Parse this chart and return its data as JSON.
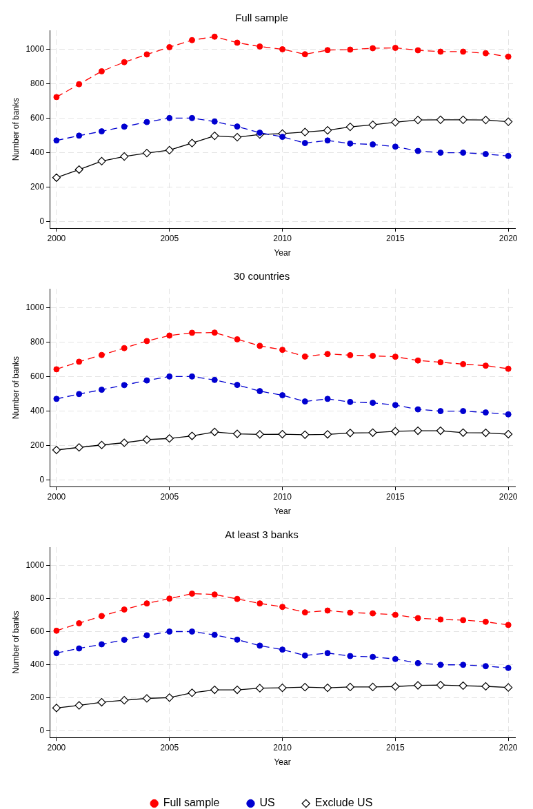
{
  "chart_data": [
    {
      "type": "line",
      "title": "Full sample",
      "xlabel": "Year",
      "ylabel": "Number of banks",
      "x": [
        2000,
        2001,
        2002,
        2003,
        2004,
        2005,
        2006,
        2007,
        2008,
        2009,
        2010,
        2011,
        2012,
        2013,
        2014,
        2015,
        2016,
        2017,
        2018,
        2019,
        2020
      ],
      "xlim": [
        1999.7,
        2020.3
      ],
      "xticks": [
        2000,
        2005,
        2010,
        2015,
        2020
      ],
      "ylim": [
        -40,
        1110
      ],
      "yticks": [
        0,
        200,
        400,
        600,
        800,
        1000
      ],
      "grid": true,
      "legend": false,
      "series": [
        {
          "color": "#ff0000",
          "marker": "circle",
          "line_style": "dashed",
          "values": [
            722,
            797,
            872,
            925,
            970,
            1012,
            1053,
            1073,
            1038,
            1016,
            1000,
            971,
            995,
            998,
            1006,
            1008,
            994,
            986,
            986,
            977,
            957
          ]
        },
        {
          "color": "#0000d0",
          "marker": "circle",
          "line_style": "dashed",
          "values": [
            470,
            498,
            523,
            550,
            577,
            600,
            600,
            580,
            551,
            515,
            491,
            455,
            470,
            452,
            447,
            434,
            409,
            399,
            399,
            391,
            380
          ]
        },
        {
          "color": "#000000",
          "marker": "diamond",
          "line_style": "solid",
          "values": [
            254,
            301,
            350,
            377,
            397,
            414,
            455,
            497,
            489,
            505,
            510,
            519,
            529,
            549,
            561,
            576,
            589,
            590,
            590,
            589,
            579
          ]
        }
      ]
    },
    {
      "type": "line",
      "title": "30 countries",
      "xlabel": "Year",
      "ylabel": "Number of banks",
      "x": [
        2000,
        2001,
        2002,
        2003,
        2004,
        2005,
        2006,
        2007,
        2008,
        2009,
        2010,
        2011,
        2012,
        2013,
        2014,
        2015,
        2016,
        2017,
        2018,
        2019,
        2020
      ],
      "xlim": [
        1999.7,
        2020.3
      ],
      "xticks": [
        2000,
        2005,
        2010,
        2015,
        2020
      ],
      "ylim": [
        -40,
        1110
      ],
      "yticks": [
        0,
        200,
        400,
        600,
        800,
        1000
      ],
      "grid": true,
      "legend": false,
      "series": [
        {
          "color": "#ff0000",
          "marker": "circle",
          "line_style": "dashed",
          "values": [
            642,
            686,
            725,
            765,
            806,
            838,
            854,
            855,
            816,
            778,
            755,
            716,
            731,
            724,
            720,
            715,
            693,
            683,
            672,
            663,
            645
          ]
        },
        {
          "color": "#0000d0",
          "marker": "circle",
          "line_style": "dashed",
          "values": [
            470,
            498,
            523,
            550,
            577,
            600,
            600,
            580,
            551,
            515,
            491,
            455,
            470,
            452,
            447,
            434,
            409,
            399,
            399,
            391,
            380
          ]
        },
        {
          "color": "#000000",
          "marker": "diamond",
          "line_style": "solid",
          "values": [
            173,
            188,
            202,
            215,
            233,
            240,
            255,
            278,
            267,
            264,
            265,
            262,
            264,
            272,
            274,
            282,
            285,
            285,
            274,
            273,
            265
          ]
        }
      ]
    },
    {
      "type": "line",
      "title": "At least 3 banks",
      "xlabel": "Year",
      "ylabel": "Number of banks",
      "x": [
        2000,
        2001,
        2002,
        2003,
        2004,
        2005,
        2006,
        2007,
        2008,
        2009,
        2010,
        2011,
        2012,
        2013,
        2014,
        2015,
        2016,
        2017,
        2018,
        2019,
        2020
      ],
      "xlim": [
        1999.7,
        2020.3
      ],
      "xticks": [
        2000,
        2005,
        2010,
        2015,
        2020
      ],
      "ylim": [
        -40,
        1110
      ],
      "yticks": [
        0,
        200,
        400,
        600,
        800,
        1000
      ],
      "grid": true,
      "legend": "bottom",
      "series": [
        {
          "name": "Full sample",
          "color": "#ff0000",
          "marker": "circle",
          "line_style": "dashed",
          "values": [
            605,
            650,
            694,
            733,
            770,
            799,
            829,
            824,
            797,
            770,
            749,
            716,
            727,
            714,
            710,
            701,
            681,
            673,
            669,
            659,
            640
          ]
        },
        {
          "name": "US",
          "color": "#0000d0",
          "marker": "circle",
          "line_style": "dashed",
          "values": [
            470,
            498,
            523,
            550,
            577,
            600,
            600,
            580,
            551,
            515,
            491,
            455,
            470,
            452,
            447,
            434,
            409,
            399,
            399,
            391,
            380
          ]
        },
        {
          "name": "Exclude US",
          "color": "#000000",
          "marker": "diamond",
          "line_style": "solid",
          "values": [
            138,
            154,
            173,
            185,
            196,
            201,
            230,
            248,
            248,
            258,
            260,
            264,
            260,
            265,
            265,
            268,
            275,
            277,
            273,
            269,
            262
          ]
        }
      ]
    }
  ]
}
